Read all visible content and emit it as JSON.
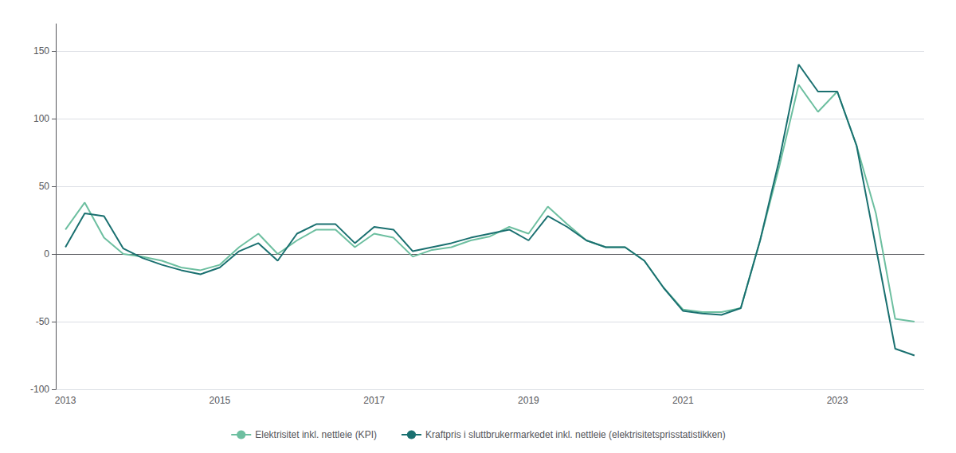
{
  "chart_data": {
    "type": "line",
    "categories": [
      "2013",
      null,
      null,
      null,
      null,
      null,
      null,
      null,
      "2015",
      null,
      null,
      null,
      null,
      null,
      null,
      null,
      "2017",
      null,
      null,
      null,
      null,
      null,
      null,
      null,
      "2019",
      null,
      null,
      null,
      null,
      null,
      null,
      null,
      "2021",
      null,
      null,
      null,
      null,
      null,
      null,
      null,
      "2023",
      null,
      null,
      null,
      null
    ],
    "series": [
      {
        "name": "Elektrisitet inkl. nettleie (KPI)",
        "color": "#6dbfa0",
        "values": [
          18,
          38,
          12,
          0,
          -2,
          -5,
          -10,
          -12,
          -8,
          5,
          15,
          0,
          10,
          18,
          18,
          5,
          15,
          12,
          -2,
          3,
          5,
          10,
          13,
          20,
          15,
          35,
          22,
          10,
          5,
          5,
          -5,
          -25,
          -41,
          -43,
          -43,
          -40,
          10,
          65,
          125,
          105,
          120,
          80,
          30,
          -48,
          -50
        ]
      },
      {
        "name": "Kraftpris i sluttbrukermarkedet inkl. nettleie (elektrisitetsprisstatistikken)",
        "color": "#1a7070",
        "values": [
          5,
          30,
          28,
          4,
          -3,
          -8,
          -12,
          -15,
          -10,
          2,
          8,
          -5,
          15,
          22,
          22,
          8,
          20,
          18,
          2,
          5,
          8,
          12,
          15,
          18,
          10,
          28,
          20,
          10,
          5,
          5,
          -5,
          -25,
          -42,
          -44,
          -45,
          -40,
          10,
          70,
          140,
          120,
          120,
          80,
          5,
          -70,
          -75
        ]
      }
    ],
    "ylim": [
      -100,
      170
    ],
    "yticks": [
      -100,
      -50,
      0,
      50,
      100,
      150
    ],
    "grid": true,
    "legend": "bottom"
  }
}
